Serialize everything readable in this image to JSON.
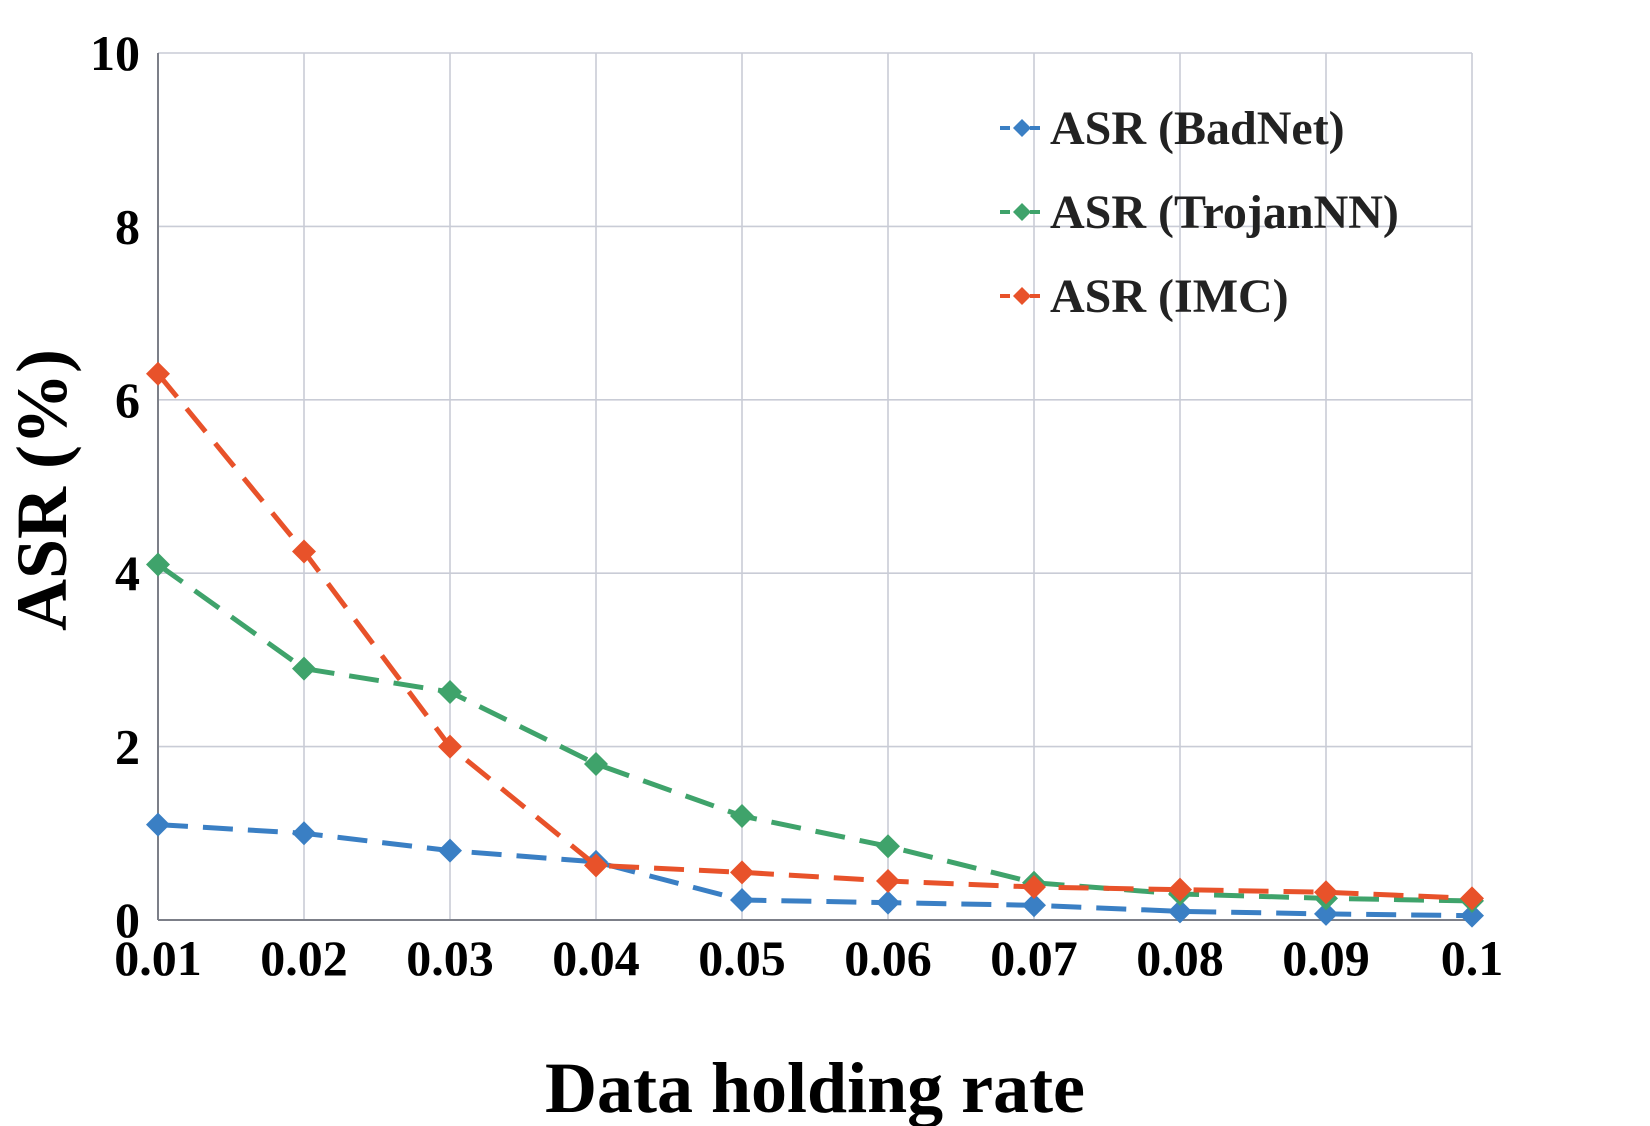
{
  "chart_data": {
    "type": "line",
    "title": "",
    "xlabel": "Data holding rate",
    "ylabel": "ASR (%)",
    "x": [
      0.01,
      0.02,
      0.03,
      0.04,
      0.05,
      0.06,
      0.07,
      0.08,
      0.09,
      0.1
    ],
    "x_tick_labels": [
      "0.01",
      "0.02",
      "0.03",
      "0.04",
      "0.05",
      "0.06",
      "0.07",
      "0.08",
      "0.09",
      "0.1"
    ],
    "ylim": [
      0,
      10
    ],
    "y_ticks": [
      0,
      2,
      4,
      6,
      8,
      10
    ],
    "y_tick_labels": [
      "0",
      "2",
      "4",
      "6",
      "8",
      "10"
    ],
    "grid": true,
    "legend_position": "top-right",
    "line_style": "dashed",
    "marker": "diamond",
    "series": [
      {
        "name": "ASR (BadNet)",
        "color": "#3a7fc4",
        "values": [
          1.1,
          1.0,
          0.8,
          0.67,
          0.23,
          0.2,
          0.17,
          0.1,
          0.07,
          0.05
        ]
      },
      {
        "name": "ASR (TrojanNN)",
        "color": "#3fa36b",
        "values": [
          4.1,
          2.9,
          2.63,
          1.8,
          1.2,
          0.85,
          0.43,
          0.3,
          0.25,
          0.22
        ]
      },
      {
        "name": "ASR (IMC)",
        "color": "#e8522a",
        "values": [
          6.3,
          4.25,
          2.0,
          0.63,
          0.55,
          0.45,
          0.38,
          0.35,
          0.32,
          0.25
        ]
      }
    ]
  }
}
